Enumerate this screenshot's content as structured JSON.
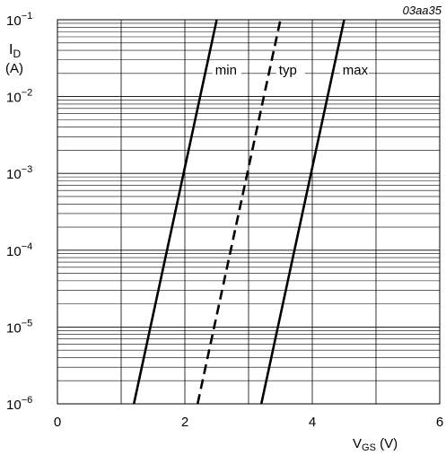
{
  "figure_code": "03aa35",
  "chart_data": {
    "type": "line",
    "xlabel": "V",
    "xlabel_sub": "GS",
    "xlabel_unit": " (V)",
    "ylabel": "I",
    "ylabel_sub": "D",
    "ylabel_unit": "(A)",
    "xlim": [
      0,
      6
    ],
    "ylim": [
      1e-06,
      0.1
    ],
    "yscale": "log",
    "x_ticks": [
      "0",
      "2",
      "4",
      "6"
    ],
    "y_ticks": [
      {
        "base": "10",
        "exp": "−6"
      },
      {
        "base": "10",
        "exp": "−5"
      },
      {
        "base": "10",
        "exp": "−4"
      },
      {
        "base": "10",
        "exp": "−3"
      },
      {
        "base": "10",
        "exp": "−2"
      },
      {
        "base": "10",
        "exp": "−1"
      }
    ],
    "grid": true,
    "series": [
      {
        "name": "min",
        "style": "solid",
        "x": [
          1.2,
          2.5
        ],
        "y": [
          1e-06,
          0.1
        ]
      },
      {
        "name": "typ",
        "style": "dashed",
        "x": [
          2.2,
          3.5
        ],
        "y": [
          1e-06,
          0.1
        ]
      },
      {
        "name": "max",
        "style": "solid",
        "x": [
          3.2,
          4.5
        ],
        "y": [
          1e-06,
          0.1
        ]
      }
    ]
  }
}
